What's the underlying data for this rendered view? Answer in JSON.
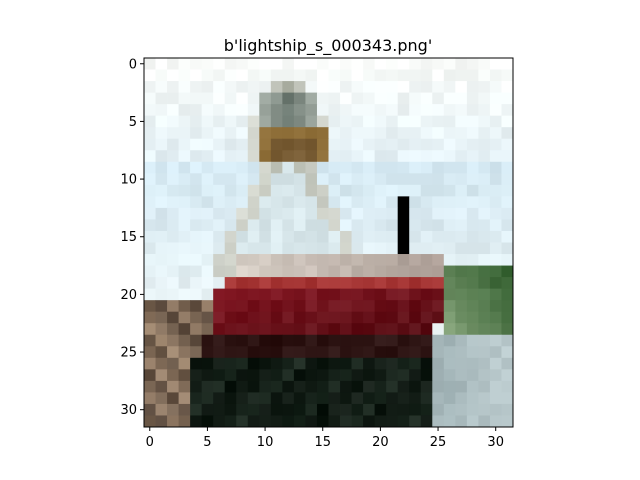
{
  "figure": {
    "title": "b'lightship_s_000343.png'"
  },
  "image_axes": {
    "pixel_grid": [
      32,
      32
    ],
    "x_ticks": [
      "0",
      "5",
      "10",
      "15",
      "20",
      "25",
      "30"
    ],
    "y_ticks": [
      "0",
      "5",
      "10",
      "15",
      "20",
      "25",
      "30"
    ],
    "x_tick_values": [
      0,
      5,
      10,
      15,
      20,
      25,
      30
    ],
    "y_tick_values": [
      0,
      5,
      10,
      15,
      20,
      25,
      30
    ],
    "xlim": [
      -0.5,
      31.5
    ],
    "ylim": [
      31.5,
      -0.5
    ]
  },
  "image_content": {
    "description_colors": {
      "sky_top": "#fbfdfb",
      "sky_light_blue": "#d4e8f2",
      "tower_gray": "#a7ab9e",
      "lantern_brown": "#6f5530",
      "hull_red": "#8a1a26",
      "hull_dark_red": "#5c0f16",
      "shadow_black": "#0c150f",
      "water_gray": "#9fb1b4",
      "trees_green": "#2e5a2a"
    }
  }
}
